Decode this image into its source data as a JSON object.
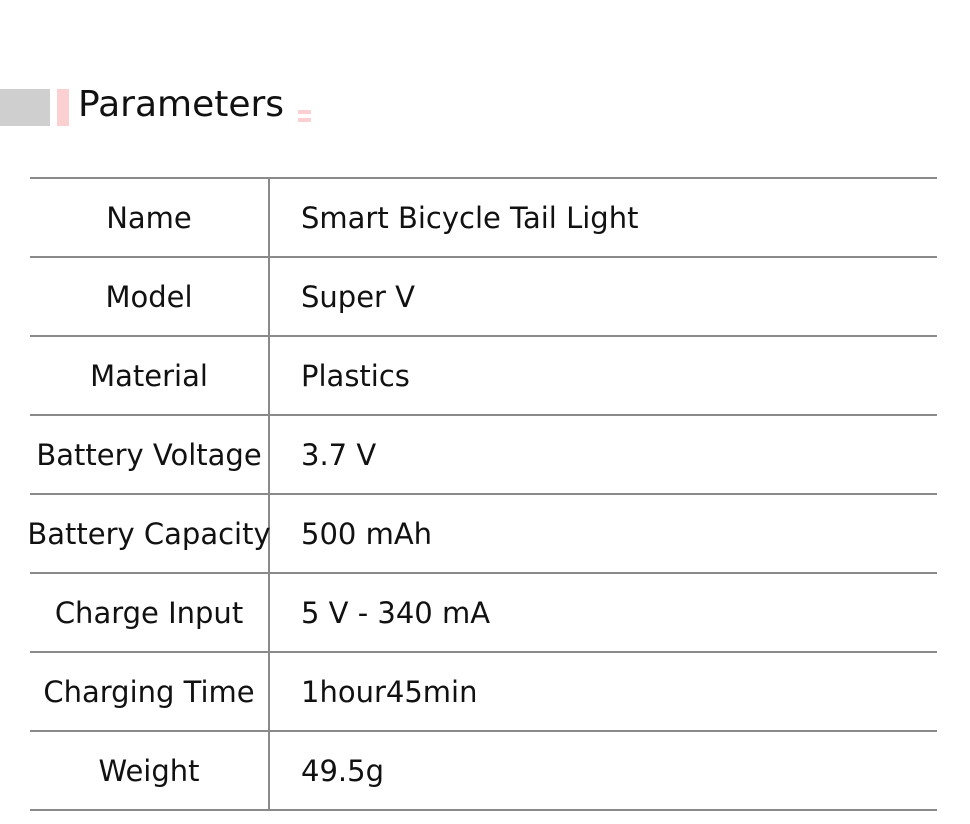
{
  "title": "Parameters",
  "rows": [
    {
      "label": "Name",
      "value": "Smart Bicycle Tail Light"
    },
    {
      "label": "Model",
      "value": "Super V"
    },
    {
      "label": "Material",
      "value": "Plastics"
    },
    {
      "label": "Battery Voltage",
      "value": "3.7 V"
    },
    {
      "label": "Battery Capacity",
      "value": "500 mAh"
    },
    {
      "label": "Charge Input",
      "value": "5 V - 340 mA"
    },
    {
      "label": "Charging Time",
      "value": "1hour45min"
    },
    {
      "label": "Weight",
      "value": "49.5g"
    }
  ],
  "colors": {
    "accent": "#fcd0d0",
    "gray_block": "#cfcfcf",
    "rule": "#8a8a8a"
  }
}
